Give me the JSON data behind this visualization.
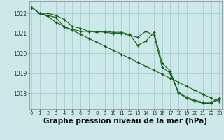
{
  "background_color": "#cce8e8",
  "grid_color": "#99cccc",
  "line_color": "#1a5c1a",
  "marker": "+",
  "xlabel": "Graphe pression niveau de la mer (hPa)",
  "xlabel_fontsize": 7.5,
  "ylabel_ticks": [
    1018,
    1019,
    1020,
    1021,
    1022
  ],
  "xticks": [
    0,
    1,
    2,
    3,
    4,
    5,
    6,
    7,
    8,
    9,
    10,
    11,
    12,
    13,
    14,
    15,
    16,
    17,
    18,
    19,
    20,
    21,
    22,
    23
  ],
  "xlim": [
    -0.3,
    23.3
  ],
  "ylim": [
    1017.2,
    1022.6
  ],
  "line1": [
    1022.3,
    1022.0,
    1021.9,
    1021.8,
    1021.3,
    1021.2,
    1021.1,
    1021.1,
    1021.1,
    1021.05,
    1021.0,
    1021.0,
    1020.9,
    1020.8,
    1021.1,
    1020.9,
    1019.3,
    1019.0,
    1018.0,
    1017.75,
    1017.6,
    1017.5,
    1017.5,
    1017.7
  ],
  "line2": [
    1022.3,
    1022.0,
    1021.85,
    1021.55,
    1021.35,
    1021.15,
    1020.95,
    1020.75,
    1020.55,
    1020.35,
    1020.15,
    1019.95,
    1019.75,
    1019.55,
    1019.35,
    1019.15,
    1018.95,
    1018.75,
    1018.55,
    1018.35,
    1018.15,
    1017.95,
    1017.75,
    1017.6
  ],
  "line3": [
    1022.3,
    1022.0,
    1022.0,
    1021.9,
    1021.7,
    1021.35,
    1021.25,
    1021.1,
    1021.05,
    1021.1,
    1021.05,
    1021.05,
    1020.95,
    1020.4,
    1020.6,
    1021.05,
    1019.5,
    1019.1,
    1018.05,
    1017.8,
    1017.65,
    1017.55,
    1017.55,
    1017.75
  ]
}
